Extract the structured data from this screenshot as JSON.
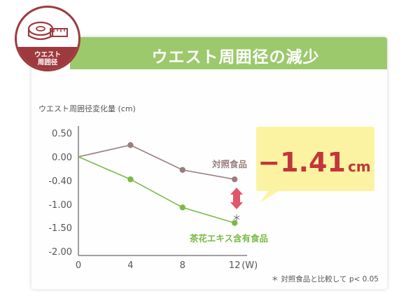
{
  "banner": {
    "title": "ウエスト周囲径の減少"
  },
  "badge": {
    "line1": "ウエスト",
    "line2": "周囲径",
    "icon": "measuring-tape-icon"
  },
  "callout": {
    "value": "−1.41",
    "unit": "cm"
  },
  "significance": {
    "marker": "＊"
  },
  "footnote": "＊ 対照食品と比較して p< 0.05",
  "colors": {
    "banner": "#9cc96c",
    "badge": "#9e3a3d",
    "control": "#9a7e7e",
    "test": "#7bb946",
    "arrow": "#e0566b",
    "callout_bg": "#fbf3a2",
    "callout_text": "#c2363b"
  },
  "chart_data": {
    "type": "line",
    "title": "",
    "ylabel": "ウエスト周囲径変化量 (cm)",
    "xlabel": "(W)",
    "x": [
      0,
      4,
      8,
      12
    ],
    "x_tick_labels": [
      "0",
      "4",
      "8",
      "12"
    ],
    "y_tick_labels": [
      "0.50",
      "0.00",
      "-0.40",
      "-1.00",
      "-1.50",
      "-2.00"
    ],
    "ylim": [
      -2.0,
      0.5
    ],
    "grid": false,
    "series": [
      {
        "name": "対照食品",
        "color": "#9a7e7e",
        "values": [
          0,
          0.25,
          -0.28,
          -0.48
        ]
      },
      {
        "name": "茶花エキス含有食品",
        "color": "#7bb946",
        "values": [
          0,
          -0.48,
          -1.08,
          -1.41
        ]
      }
    ]
  }
}
